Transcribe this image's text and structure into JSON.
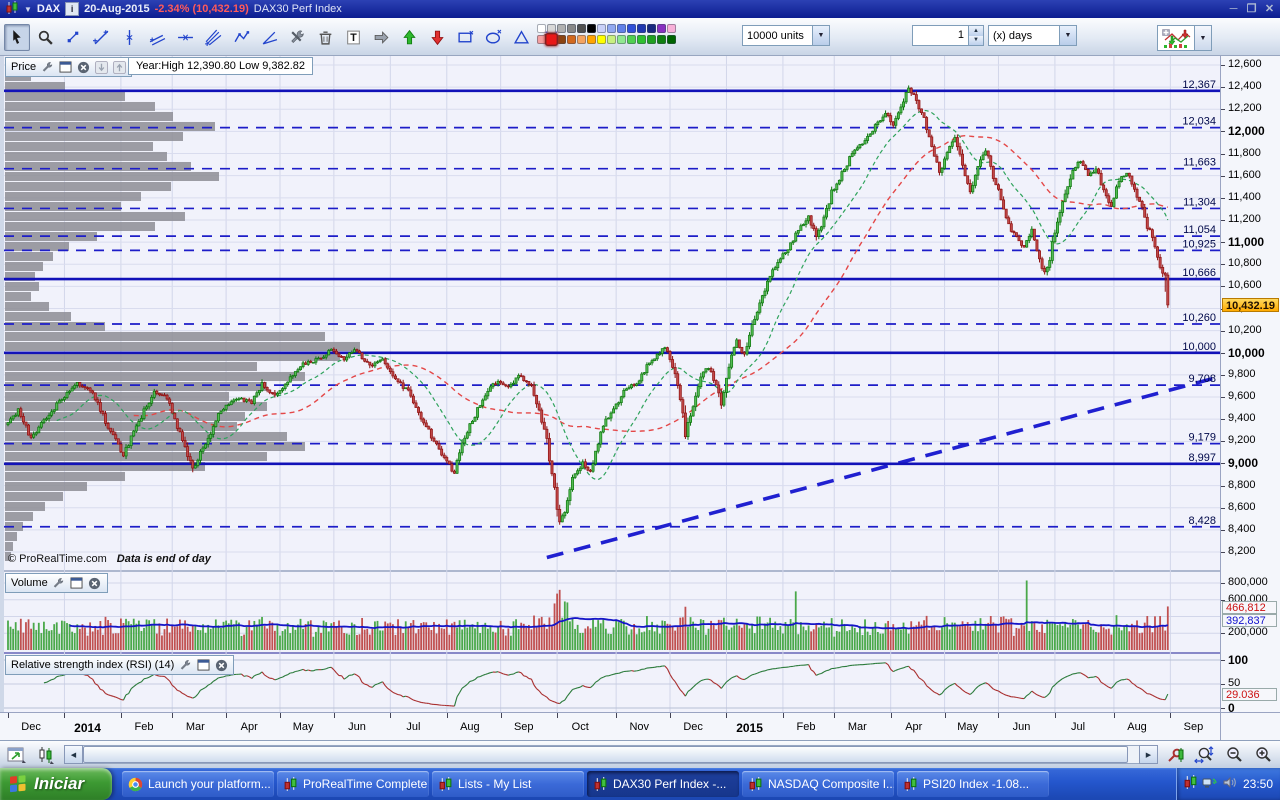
{
  "window": {
    "symbol": "DAX",
    "date": "20-Aug-2015",
    "change": "-2.34% (10,432.19)",
    "instrument": "DAX30 Perf Index",
    "controls": [
      "minimize",
      "restore",
      "close"
    ]
  },
  "toolbar": {
    "tools": [
      "pointer",
      "zoom",
      "segment",
      "trendline",
      "vertical-line",
      "parallel-lines",
      "horizontal-line",
      "pitchfork",
      "zigzag",
      "angle-line",
      "drawing-tools",
      "delete",
      "text",
      "arrow-right",
      "arrow-up",
      "arrow-down",
      "rectangle",
      "ellipse",
      "triangle",
      "fibonacci-percent"
    ],
    "selected_tool": "pointer",
    "units": "10000 units",
    "count": "1",
    "period": "(x) days",
    "palette_top": [
      "#ffffff",
      "#d8d8d8",
      "#b0b0b0",
      "#888888",
      "#505050",
      "#000000",
      "#c8d0f8",
      "#90a8f0",
      "#6080e8",
      "#3050d8",
      "#2038b0",
      "#182880",
      "#8830c0",
      "#f8b0d8"
    ],
    "palette_bottom": [
      "#f4a0a0",
      "#e81818",
      "#8b4513",
      "#d2691e",
      "#f4a460",
      "#ffa500",
      "#ffff00",
      "#c8f080",
      "#90e890",
      "#50d050",
      "#30c030",
      "#20a020",
      "#108010",
      "#006400"
    ],
    "selected_color": "#e81818"
  },
  "price_panel": {
    "label": "Price",
    "year_stats": "Year:High 12,390.80 Low 9,382.82",
    "copyright": "© ProRealTime.com",
    "note": "Data is end of day",
    "current_price": "10,432.19"
  },
  "volume_panel": {
    "label": "Volume",
    "bar_value": "466,812",
    "ma_value": "392,837"
  },
  "rsi_panel": {
    "label": "Relative strength index (RSI) (14)",
    "current": "29.036"
  },
  "taskbar": {
    "start": "Iniciar",
    "clock": "23:50",
    "tasks": [
      {
        "icon": "chrome",
        "label": "Launch your platform...",
        "active": false
      },
      {
        "icon": "candles",
        "label": "ProRealTime Complete",
        "active": false
      },
      {
        "icon": "candles",
        "label": "Lists - My List",
        "active": false
      },
      {
        "icon": "candles",
        "label": "DAX30 Perf Index -...",
        "active": true
      },
      {
        "icon": "candles",
        "label": "NASDAQ Composite I...",
        "active": false
      },
      {
        "icon": "candles",
        "label": "PSI20 Index -1.08...",
        "active": false
      }
    ]
  },
  "chart_data": {
    "type": "candlestick",
    "symbol": "DAX30 Perf Index",
    "timeframe": "daily",
    "year_high": 12390.8,
    "year_low": 9382.82,
    "last_price": 10432.19,
    "change_pct": -2.34,
    "y_axis": {
      "min": 8200,
      "max": 12600,
      "step": 200,
      "bold": [
        9000,
        10000,
        11000,
        12000
      ]
    },
    "levels_solid": [
      12367,
      10666,
      10000,
      8997
    ],
    "levels_dashed": [
      12034,
      11663,
      11304,
      11054,
      10925,
      10260,
      9708,
      9179,
      8428
    ],
    "trendline": {
      "from_day": 210,
      "from_price": 8150,
      "to_day": 470,
      "to_price": 9770
    },
    "days_total": 470,
    "months": [
      [
        "Dec",
        0,
        0
      ],
      [
        "2014",
        22,
        1
      ],
      [
        "Feb",
        44,
        0
      ],
      [
        "Mar",
        64,
        0
      ],
      [
        "Apr",
        85,
        0
      ],
      [
        "May",
        106,
        0
      ],
      [
        "Jun",
        127,
        0
      ],
      [
        "Jul",
        149,
        0
      ],
      [
        "Aug",
        171,
        0
      ],
      [
        "Sep",
        192,
        0
      ],
      [
        "Oct",
        214,
        0
      ],
      [
        "Nov",
        237,
        0
      ],
      [
        "Dec",
        258,
        0
      ],
      [
        "2015",
        280,
        1
      ],
      [
        "Feb",
        302,
        0
      ],
      [
        "Mar",
        322,
        0
      ],
      [
        "Apr",
        344,
        0
      ],
      [
        "May",
        365,
        0
      ],
      [
        "Jun",
        386,
        0
      ],
      [
        "Jul",
        408,
        0
      ],
      [
        "Aug",
        431,
        0
      ],
      [
        "Sep",
        453,
        0
      ]
    ],
    "price_path": [
      [
        0,
        9350
      ],
      [
        5,
        9480
      ],
      [
        10,
        9230
      ],
      [
        16,
        9420
      ],
      [
        22,
        9580
      ],
      [
        28,
        9730
      ],
      [
        34,
        9640
      ],
      [
        40,
        9330
      ],
      [
        46,
        9070
      ],
      [
        52,
        9380
      ],
      [
        58,
        9660
      ],
      [
        63,
        9590
      ],
      [
        68,
        9270
      ],
      [
        73,
        8950
      ],
      [
        78,
        9190
      ],
      [
        84,
        9480
      ],
      [
        90,
        9590
      ],
      [
        96,
        9550
      ],
      [
        100,
        9720
      ],
      [
        105,
        9600
      ],
      [
        110,
        9740
      ],
      [
        116,
        9900
      ],
      [
        122,
        9940
      ],
      [
        127,
        10020
      ],
      [
        132,
        9950
      ],
      [
        137,
        10030
      ],
      [
        142,
        9870
      ],
      [
        147,
        9950
      ],
      [
        152,
        9750
      ],
      [
        157,
        9650
      ],
      [
        162,
        9420
      ],
      [
        167,
        9200
      ],
      [
        172,
        9010
      ],
      [
        175,
        8920
      ],
      [
        179,
        9240
      ],
      [
        184,
        9480
      ],
      [
        188,
        9660
      ],
      [
        192,
        9750
      ],
      [
        196,
        9680
      ],
      [
        200,
        9800
      ],
      [
        205,
        9710
      ],
      [
        208,
        9460
      ],
      [
        211,
        9190
      ],
      [
        214,
        8750
      ],
      [
        216,
        8480
      ],
      [
        218,
        8560
      ],
      [
        221,
        8860
      ],
      [
        225,
        9010
      ],
      [
        228,
        8920
      ],
      [
        231,
        9190
      ],
      [
        234,
        9390
      ],
      [
        238,
        9530
      ],
      [
        242,
        9680
      ],
      [
        246,
        9730
      ],
      [
        250,
        9870
      ],
      [
        254,
        9980
      ],
      [
        257,
        10060
      ],
      [
        260,
        9890
      ],
      [
        263,
        9560
      ],
      [
        265,
        9270
      ],
      [
        268,
        9500
      ],
      [
        271,
        9790
      ],
      [
        274,
        9870
      ],
      [
        277,
        9720
      ],
      [
        279,
        9550
      ],
      [
        282,
        9880
      ],
      [
        285,
        10100
      ],
      [
        288,
        9980
      ],
      [
        291,
        10250
      ],
      [
        295,
        10500
      ],
      [
        298,
        10690
      ],
      [
        301,
        10810
      ],
      [
        305,
        10950
      ],
      [
        309,
        11100
      ],
      [
        313,
        11230
      ],
      [
        316,
        11050
      ],
      [
        319,
        11210
      ],
      [
        322,
        11440
      ],
      [
        326,
        11620
      ],
      [
        330,
        11800
      ],
      [
        334,
        11900
      ],
      [
        337,
        11980
      ],
      [
        340,
        12080
      ],
      [
        343,
        12170
      ],
      [
        346,
        12040
      ],
      [
        349,
        12220
      ],
      [
        352,
        12390
      ],
      [
        355,
        12280
      ],
      [
        358,
        12110
      ],
      [
        361,
        11870
      ],
      [
        364,
        11630
      ],
      [
        367,
        11810
      ],
      [
        370,
        11950
      ],
      [
        373,
        11680
      ],
      [
        376,
        11450
      ],
      [
        379,
        11700
      ],
      [
        382,
        11830
      ],
      [
        385,
        11600
      ],
      [
        388,
        11400
      ],
      [
        391,
        11150
      ],
      [
        394,
        11040
      ],
      [
        397,
        10950
      ],
      [
        400,
        11100
      ],
      [
        402,
        10900
      ],
      [
        405,
        10720
      ],
      [
        407,
        10860
      ],
      [
        410,
        11200
      ],
      [
        413,
        11450
      ],
      [
        416,
        11670
      ],
      [
        419,
        11740
      ],
      [
        422,
        11600
      ],
      [
        425,
        11670
      ],
      [
        428,
        11480
      ],
      [
        431,
        11310
      ],
      [
        434,
        11560
      ],
      [
        437,
        11640
      ],
      [
        440,
        11450
      ],
      [
        443,
        11300
      ],
      [
        445,
        11140
      ],
      [
        447,
        11050
      ],
      [
        449,
        10850
      ],
      [
        451,
        10702
      ],
      [
        453,
        10432.19
      ]
    ],
    "last_candle": {
      "open": 10702,
      "high": 10726,
      "low": 10406,
      "close": 10432.19
    },
    "volume_profile": [
      18,
      26,
      60,
      120,
      150,
      168,
      210,
      178,
      148,
      162,
      186,
      214,
      166,
      136,
      116,
      180,
      150,
      92,
      64,
      48,
      38,
      30,
      34,
      26,
      44,
      66,
      100,
      320,
      355,
      335,
      252,
      300,
      262,
      224,
      262,
      240,
      232,
      282,
      300,
      262,
      200,
      120,
      82,
      58,
      40,
      28,
      18,
      12,
      8,
      6
    ],
    "volume_axis": {
      "ticks": [
        800000,
        600000,
        200000
      ],
      "bar_value": 466812,
      "ma_value": 392837
    },
    "rsi": {
      "period": 14,
      "current": 29.036,
      "ticks": [
        100,
        50,
        0
      ],
      "bold": [
        100,
        0
      ]
    }
  }
}
